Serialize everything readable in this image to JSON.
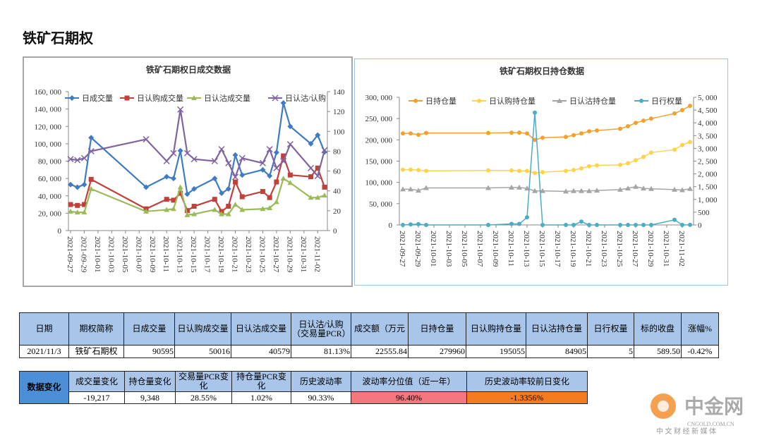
{
  "header": {
    "title": "铁矿石期权"
  },
  "chart_data": [
    {
      "type": "line",
      "title": "铁矿石期权日成交数据",
      "x": [
        "2021-09-27",
        "2021-09-28",
        "2021-09-29",
        "2021-09-30",
        "2021-10-08",
        "2021-10-11",
        "2021-10-12",
        "2021-10-13",
        "2021-10-14",
        "2021-10-15",
        "2021-10-18",
        "2021-10-19",
        "2021-10-20",
        "2021-10-21",
        "2021-10-22",
        "2021-10-25",
        "2021-10-26",
        "2021-10-27",
        "2021-10-28",
        "2021-10-29",
        "2021-11-01",
        "2021-11-02",
        "2021-11-03"
      ],
      "xlim": [
        "2021-09-27",
        "2021-11-03"
      ],
      "xticks": [
        "2021-09-27",
        "2021-09-29",
        "2021-10-01",
        "2021-10-03",
        "2021-10-05",
        "2021-10-07",
        "2021-10-09",
        "2021-10-11",
        "2021-10-13",
        "2021-10-15",
        "2021-10-17",
        "2021-10-19",
        "2021-10-21",
        "2021-10-23",
        "2021-10-25",
        "2021-10-27",
        "2021-10-29",
        "2021-10-31",
        "2021-11-02"
      ],
      "ylim": [
        0,
        160000
      ],
      "yticks": [
        {
          "value": 0,
          "label": "0"
        },
        {
          "value": 20000,
          "label": "20, 000"
        },
        {
          "value": 40000,
          "label": "40, 000"
        },
        {
          "value": 60000,
          "label": "60, 000"
        },
        {
          "value": 80000,
          "label": "80, 000"
        },
        {
          "value": 100000,
          "label": "100, 000"
        },
        {
          "value": 120000,
          "label": "120, 000"
        },
        {
          "value": 140000,
          "label": "140, 000"
        },
        {
          "value": 160000,
          "label": "160, 000"
        }
      ],
      "y2lim": [
        0,
        140
      ],
      "y2ticks": [
        0,
        20,
        40,
        60,
        80,
        100,
        120,
        140
      ],
      "series": [
        {
          "name": "日成交量",
          "color": "#3f7bc4",
          "marker": "diamond",
          "values": [
            53000,
            50000,
            53000,
            107000,
            50000,
            62000,
            60000,
            92000,
            42000,
            48000,
            60000,
            43000,
            48000,
            87000,
            64000,
            70000,
            63000,
            90000,
            147000,
            120000,
            100000,
            110000,
            90595
          ]
        },
        {
          "name": "日认购成交量",
          "color": "#c0403c",
          "marker": "square",
          "values": [
            30000,
            29000,
            30000,
            59000,
            25000,
            36000,
            35000,
            43000,
            23000,
            28000,
            36000,
            22000,
            28000,
            56000,
            39000,
            45000,
            38000,
            56000,
            86000,
            64000,
            62000,
            72000,
            50016
          ]
        },
        {
          "name": "日认沽成交量",
          "color": "#9bbb59",
          "marker": "triangle",
          "values": [
            22000,
            21000,
            21000,
            48000,
            22000,
            24000,
            25000,
            50000,
            18000,
            19000,
            24000,
            19000,
            19000,
            30000,
            24000,
            25000,
            26000,
            33000,
            60000,
            55000,
            38000,
            38000,
            40579
          ]
        },
        {
          "name": "日认沽/认购",
          "color": "#8064a2",
          "marker": "x",
          "axis": "y2",
          "values": [
            72,
            71,
            73,
            80,
            92,
            70,
            78,
            122,
            78,
            72,
            70,
            82,
            68,
            54,
            73,
            68,
            82,
            63,
            70,
            87,
            63,
            55,
            81
          ]
        }
      ]
    },
    {
      "type": "line",
      "title": "铁矿石期权日持仓数据",
      "x": [
        "2021-09-27",
        "2021-09-28",
        "2021-09-29",
        "2021-09-30",
        "2021-10-08",
        "2021-10-11",
        "2021-10-12",
        "2021-10-13",
        "2021-10-14",
        "2021-10-15",
        "2021-10-18",
        "2021-10-19",
        "2021-10-20",
        "2021-10-21",
        "2021-10-22",
        "2021-10-25",
        "2021-10-26",
        "2021-10-27",
        "2021-10-28",
        "2021-10-29",
        "2021-11-01",
        "2021-11-02",
        "2021-11-03"
      ],
      "xlim": [
        "2021-09-27",
        "2021-11-03"
      ],
      "xticks": [
        "2021-09-27",
        "2021-09-29",
        "2021-10-01",
        "2021-10-03",
        "2021-10-05",
        "2021-10-07",
        "2021-10-09",
        "2021-10-11",
        "2021-10-13",
        "2021-10-15",
        "2021-10-17",
        "2021-10-19",
        "2021-10-21",
        "2021-10-23",
        "2021-10-25",
        "2021-10-27",
        "2021-10-29",
        "2021-10-31",
        "2021-11-02"
      ],
      "ylim": [
        0,
        300000
      ],
      "yticks": [
        {
          "value": 0,
          "label": "0"
        },
        {
          "value": 50000,
          "label": "50, 000"
        },
        {
          "value": 100000,
          "label": "100, 000"
        },
        {
          "value": 150000,
          "label": "150, 000"
        },
        {
          "value": 200000,
          "label": "200, 000"
        },
        {
          "value": 250000,
          "label": "250, 000"
        },
        {
          "value": 300000,
          "label": "300, 000"
        }
      ],
      "y2lim": [
        0,
        5000
      ],
      "y2ticks": [
        0,
        500,
        {
          "value": 1000,
          "label": "1, 000"
        },
        {
          "value": 1500,
          "label": "1, 500"
        },
        {
          "value": 2000,
          "label": "2, 000"
        },
        {
          "value": 2500,
          "label": "2, 500"
        },
        {
          "value": 3000,
          "label": "3, 000"
        },
        {
          "value": 3500,
          "label": "3, 500"
        },
        {
          "value": 4000,
          "label": "4, 000"
        },
        {
          "value": 4500,
          "label": "4, 500"
        },
        {
          "value": 5000,
          "label": "5, 000"
        }
      ],
      "series": [
        {
          "name": "日持仓量",
          "color": "#f5a02a",
          "marker": "circle",
          "values": [
            215000,
            215000,
            212000,
            216000,
            216000,
            217000,
            217000,
            215000,
            200000,
            205000,
            207000,
            211000,
            215000,
            220000,
            222000,
            226000,
            232000,
            240000,
            245000,
            250000,
            262000,
            270000,
            279960
          ]
        },
        {
          "name": "日认购持仓量",
          "color": "#fdd24e",
          "marker": "circle",
          "values": [
            130000,
            130000,
            129000,
            127000,
            128000,
            128000,
            127000,
            127000,
            122000,
            124000,
            127000,
            129000,
            133000,
            138000,
            140000,
            141000,
            145000,
            152000,
            160000,
            170000,
            177000,
            188000,
            195055
          ]
        },
        {
          "name": "日认沽持仓量",
          "color": "#a5a5a5",
          "marker": "triangle",
          "values": [
            84000,
            84000,
            81000,
            87000,
            87000,
            88000,
            88000,
            86000,
            80000,
            80000,
            79000,
            80000,
            80000,
            80000,
            81000,
            83000,
            86000,
            90000,
            86000,
            85000,
            83000,
            82000,
            84905
          ]
        },
        {
          "name": "日行权量",
          "color": "#4bacc6",
          "marker": "circle",
          "axis": "y2",
          "values": [
            0,
            20,
            30,
            0,
            0,
            40,
            40,
            300,
            4400,
            0,
            0,
            0,
            130,
            0,
            0,
            0,
            0,
            0,
            0,
            0,
            200,
            0,
            5
          ]
        }
      ]
    }
  ],
  "table1": {
    "headers": [
      "日期",
      "期权简称",
      "日成交量",
      "日认购成交量",
      "日认沽成交量",
      "日认沽/认购（交易量PCR）",
      "成交额（万元",
      "日持仓量",
      "日认购持仓量",
      "日认沽持仓量",
      "日行权量",
      "标的收盘",
      "涨幅%"
    ],
    "rows": [
      [
        "2021/11/3",
        "铁矿石期权",
        "90595",
        "50016",
        "40579",
        "81.13%",
        "22555.84",
        "279960",
        "195055",
        "84905",
        "5",
        "589.50",
        "-0.42%"
      ]
    ]
  },
  "table2": {
    "label": "数据变化",
    "headers": [
      "成交量变化",
      "持仓量变化",
      "交易量PCR变化",
      "持仓量PCR变化",
      "历史波动率",
      "波动率分位值（近一年）",
      "历史波动率较前日变化"
    ],
    "rows": [
      [
        "-19,217",
        "9,348",
        "28.55%",
        "1.02%",
        "90.33%",
        "96.40%",
        "-1.3356%"
      ]
    ]
  },
  "watermark": {
    "brand": "中金网",
    "site": "CNGOLD.COM.CN",
    "slogan": "中 文 财 经 新 媒 体"
  }
}
